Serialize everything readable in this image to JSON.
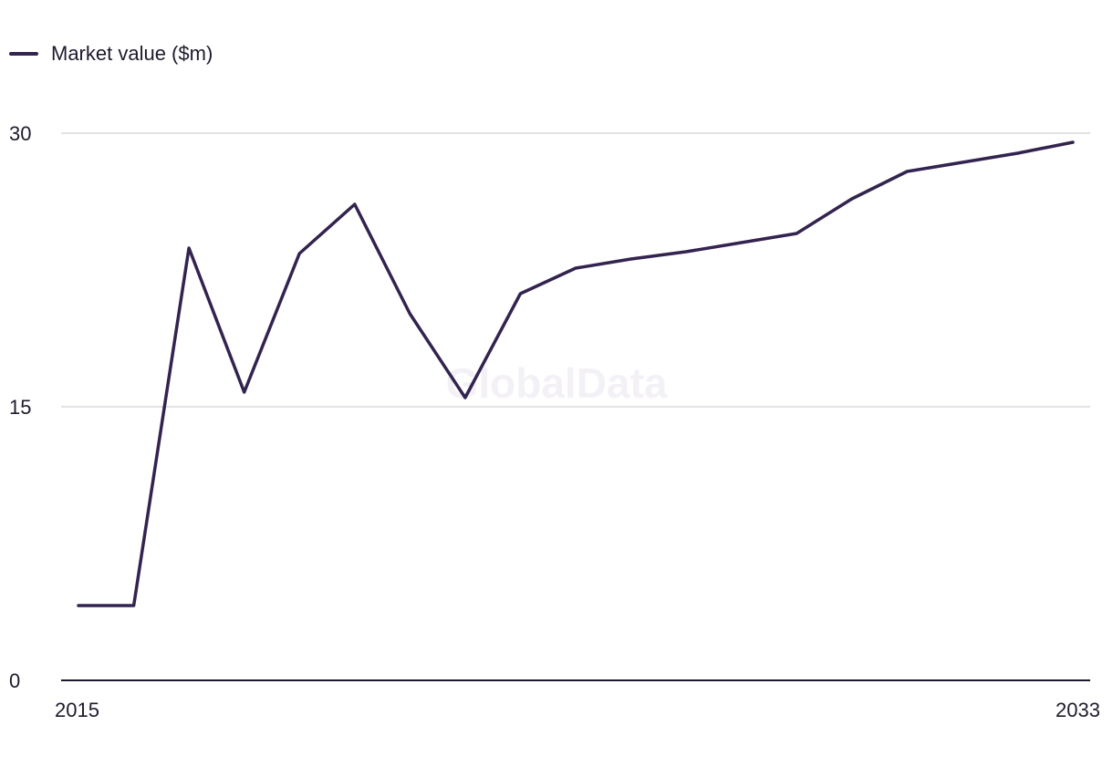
{
  "watermark": "GlobalData",
  "colors": {
    "series": "#33234f",
    "grid": "#d9d9de",
    "axis": "#1f1a2e"
  },
  "chart_data": {
    "type": "line",
    "title": "",
    "xlabel": "",
    "ylabel": "",
    "x": [
      2015,
      2016,
      2017,
      2018,
      2019,
      2020,
      2021,
      2022,
      2023,
      2024,
      2025,
      2026,
      2027,
      2028,
      2029,
      2030,
      2031,
      2032,
      2033
    ],
    "series": [
      {
        "name": "Market value ($m)",
        "values": [
          4.1,
          4.1,
          23.7,
          15.8,
          23.4,
          26.1,
          20.1,
          15.5,
          21.2,
          22.6,
          23.1,
          23.5,
          24.0,
          24.5,
          26.4,
          27.9,
          28.4,
          28.9,
          29.5
        ]
      }
    ],
    "ylim": [
      0,
      30
    ],
    "y_ticks": [
      0,
      15,
      30
    ],
    "x_tick_labels": [
      "2015",
      "2033"
    ],
    "grid": true,
    "legend_position": "top-left"
  }
}
